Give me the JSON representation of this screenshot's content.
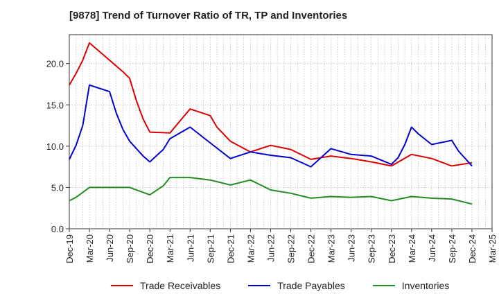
{
  "chart_data": {
    "type": "line",
    "title": "[9878]  Trend of Turnover Ratio of TR, TP and Inventories",
    "xlabel": "",
    "ylabel": "",
    "ylim": [
      0,
      23.5
    ],
    "yticks": [
      "0.0",
      "5.0",
      "10.0",
      "15.0",
      "20.0"
    ],
    "ytick_values": [
      0,
      5,
      10,
      15,
      20
    ],
    "xticks": [
      "Dec-19",
      "Mar-20",
      "Jun-20",
      "Sep-20",
      "Dec-20",
      "Mar-21",
      "Jun-21",
      "Sep-21",
      "Dec-21",
      "Mar-22",
      "Jun-22",
      "Sep-22",
      "Dec-22",
      "Mar-23",
      "Jun-23",
      "Sep-23",
      "Dec-23",
      "Mar-24",
      "Jun-24",
      "Sep-24",
      "Dec-24",
      "Mar-25"
    ],
    "x_range_months": [
      "2019-12",
      "2025-03"
    ],
    "grid": "dotted",
    "legend_position": "bottom",
    "series": [
      {
        "name": "Trade Receivables",
        "color": "#dd0000",
        "points": [
          [
            "2019-12",
            17.4
          ],
          [
            "2020-01",
            18.8
          ],
          [
            "2020-02",
            20.4
          ],
          [
            "2020-03",
            22.5
          ],
          [
            "2020-06",
            20.4
          ],
          [
            "2020-08",
            19.0
          ],
          [
            "2020-09",
            18.2
          ],
          [
            "2020-10",
            15.5
          ],
          [
            "2020-11",
            13.3
          ],
          [
            "2020-12",
            11.7
          ],
          [
            "2021-03",
            11.6
          ],
          [
            "2021-06",
            14.5
          ],
          [
            "2021-09",
            13.7
          ],
          [
            "2021-10",
            12.3
          ],
          [
            "2021-12",
            10.6
          ],
          [
            "2022-03",
            9.3
          ],
          [
            "2022-06",
            10.1
          ],
          [
            "2022-09",
            9.6
          ],
          [
            "2022-12",
            8.4
          ],
          [
            "2023-03",
            8.8
          ],
          [
            "2023-06",
            8.5
          ],
          [
            "2023-09",
            8.1
          ],
          [
            "2023-12",
            7.6
          ],
          [
            "2024-03",
            9.0
          ],
          [
            "2024-06",
            8.5
          ],
          [
            "2024-09",
            7.6
          ],
          [
            "2024-12",
            8.0
          ]
        ]
      },
      {
        "name": "Trade Payables",
        "color": "#0000cc",
        "points": [
          [
            "2019-12",
            8.4
          ],
          [
            "2020-01",
            10.1
          ],
          [
            "2020-02",
            12.5
          ],
          [
            "2020-03",
            17.4
          ],
          [
            "2020-06",
            16.6
          ],
          [
            "2020-07",
            14.0
          ],
          [
            "2020-08",
            12.0
          ],
          [
            "2020-09",
            10.6
          ],
          [
            "2020-10",
            9.7
          ],
          [
            "2020-11",
            8.8
          ],
          [
            "2020-12",
            8.1
          ],
          [
            "2021-02",
            9.6
          ],
          [
            "2021-03",
            10.9
          ],
          [
            "2021-06",
            12.3
          ],
          [
            "2021-09",
            10.4
          ],
          [
            "2021-12",
            8.5
          ],
          [
            "2022-03",
            9.3
          ],
          [
            "2022-06",
            8.9
          ],
          [
            "2022-09",
            8.6
          ],
          [
            "2022-12",
            7.5
          ],
          [
            "2023-03",
            9.7
          ],
          [
            "2023-06",
            9.0
          ],
          [
            "2023-09",
            8.8
          ],
          [
            "2023-12",
            7.8
          ],
          [
            "2024-01",
            8.6
          ],
          [
            "2024-02",
            10.2
          ],
          [
            "2024-03",
            12.3
          ],
          [
            "2024-04",
            11.5
          ],
          [
            "2024-06",
            10.2
          ],
          [
            "2024-09",
            10.7
          ],
          [
            "2024-10",
            9.4
          ],
          [
            "2024-12",
            7.6
          ]
        ]
      },
      {
        "name": "Inventories",
        "color": "#228b22",
        "points": [
          [
            "2019-12",
            3.4
          ],
          [
            "2020-01",
            3.8
          ],
          [
            "2020-02",
            4.4
          ],
          [
            "2020-03",
            5.0
          ],
          [
            "2020-06",
            5.0
          ],
          [
            "2020-09",
            5.0
          ],
          [
            "2020-12",
            4.1
          ],
          [
            "2021-02",
            5.2
          ],
          [
            "2021-03",
            6.2
          ],
          [
            "2021-06",
            6.2
          ],
          [
            "2021-09",
            5.9
          ],
          [
            "2021-12",
            5.3
          ],
          [
            "2022-03",
            5.9
          ],
          [
            "2022-06",
            4.7
          ],
          [
            "2022-09",
            4.3
          ],
          [
            "2022-12",
            3.7
          ],
          [
            "2023-03",
            3.9
          ],
          [
            "2023-06",
            3.8
          ],
          [
            "2023-09",
            3.9
          ],
          [
            "2023-12",
            3.4
          ],
          [
            "2024-03",
            3.9
          ],
          [
            "2024-06",
            3.7
          ],
          [
            "2024-09",
            3.6
          ],
          [
            "2024-12",
            3.0
          ]
        ]
      }
    ]
  }
}
